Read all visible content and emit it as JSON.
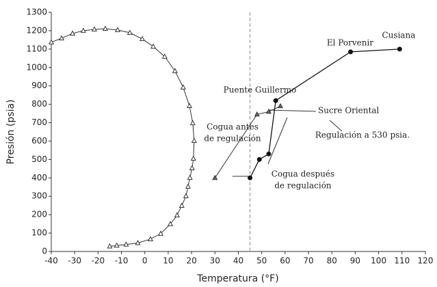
{
  "chart_data": {
    "type": "line",
    "xlabel": "Temperatura (°F)",
    "ylabel": "Presión (psia)",
    "xlim": [
      -40,
      120
    ],
    "xticks": [
      -40,
      -30,
      -20,
      -10,
      0,
      10,
      20,
      30,
      40,
      50,
      60,
      70,
      80,
      90,
      100,
      110,
      120
    ],
    "ylim": [
      0,
      1300
    ],
    "yticks": [
      0,
      100,
      200,
      300,
      400,
      500,
      600,
      700,
      800,
      900,
      1000,
      1100,
      1200,
      1300
    ],
    "vline": 45,
    "series": [
      {
        "marker": "triangle",
        "color": "#333",
        "x": [
          -40,
          -35.6,
          -30.9,
          -26.3,
          -21.6,
          -16.9,
          -11.6,
          -6.4,
          -1.1,
          3.6,
          8.5,
          12.9,
          16.4,
          19.1,
          20.5,
          21.1,
          20.8,
          20.2,
          19.3,
          18.5,
          17.6,
          15.8,
          13.8,
          10.9,
          6.8,
          2.4,
          -3,
          -8,
          -12,
          -15
        ],
        "values": [
          1137,
          1159,
          1185,
          1200,
          1207,
          1211,
          1204,
          1189,
          1155,
          1114,
          1059,
          981,
          892,
          791,
          698,
          602,
          505,
          453,
          401,
          353,
          301,
          249,
          197,
          149,
          97,
          67,
          46,
          38,
          32,
          28
        ]
      },
      {
        "marker": "circle",
        "color": "#111",
        "x": [
          109,
          88,
          56,
          53,
          49,
          45
        ],
        "values": [
          1100,
          1085,
          820,
          530,
          500,
          400
        ]
      },
      {
        "marker": "triangle",
        "color": "#333",
        "x": [
          58,
          53,
          48,
          30
        ],
        "values": [
          790,
          760,
          745,
          400
        ]
      }
    ],
    "annotations": [
      [
        "Cusiana"
      ],
      [
        "El Porvenir"
      ],
      [
        "Puente Guillermo"
      ],
      [
        "Sucre Oriental"
      ],
      [
        "Cogua antes",
        "de regulación"
      ],
      [
        "Regulación a 530 psia."
      ],
      [
        "Cogua después",
        "de regulación"
      ]
    ]
  }
}
